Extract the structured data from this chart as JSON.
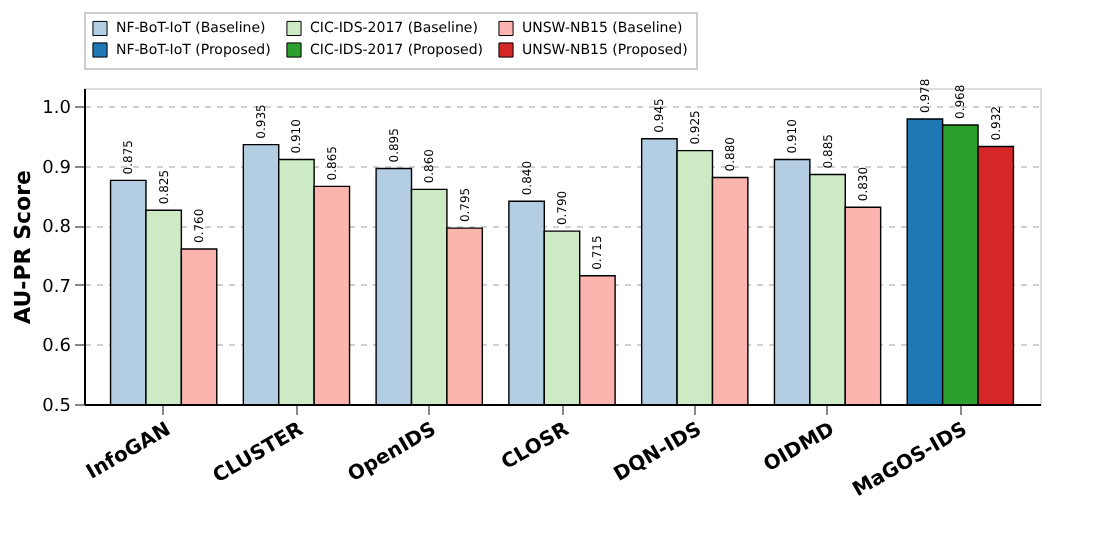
{
  "chart_data": {
    "type": "bar",
    "ylabel": "AU-PR Score",
    "categories": [
      "InfoGAN",
      "CLUSTER",
      "OpenIDS",
      "CLOSR",
      "DQN-IDS",
      "OIDMD",
      "MaGOS-IDS"
    ],
    "series": [
      {
        "name": "NF-BoT-IoT (Baseline)",
        "color": "#b3cde3",
        "values": [
          0.875,
          0.935,
          0.895,
          0.84,
          0.945,
          0.91,
          null
        ],
        "value_labels": [
          "0.875",
          "0.935",
          "0.895",
          "0.840",
          "0.945",
          "0.910",
          null
        ]
      },
      {
        "name": "CIC-IDS-2017 (Baseline)",
        "color": "#ccebc5",
        "values": [
          0.825,
          0.91,
          0.86,
          0.79,
          0.925,
          0.885,
          null
        ],
        "value_labels": [
          "0.825",
          "0.910",
          "0.860",
          "0.790",
          "0.925",
          "0.885",
          null
        ]
      },
      {
        "name": "UNSW-NB15 (Baseline)",
        "color": "#fbb4ae",
        "values": [
          0.76,
          0.865,
          0.795,
          0.715,
          0.88,
          0.83,
          null
        ],
        "value_labels": [
          "0.760",
          "0.865",
          "0.795",
          "0.715",
          "0.880",
          "0.830",
          null
        ]
      },
      {
        "name": "NF-BoT-IoT (Proposed)",
        "color": "#1f77b4",
        "values": [
          null,
          null,
          null,
          null,
          null,
          null,
          0.978
        ],
        "value_labels": [
          null,
          null,
          null,
          null,
          null,
          null,
          "0.978"
        ]
      },
      {
        "name": "CIC-IDS-2017 (Proposed)",
        "color": "#2ca02c",
        "values": [
          null,
          null,
          null,
          null,
          null,
          null,
          0.968
        ],
        "value_labels": [
          null,
          null,
          null,
          null,
          null,
          null,
          "0.968"
        ]
      },
      {
        "name": "UNSW-NB15 (Proposed)",
        "color": "#d62728",
        "values": [
          null,
          null,
          null,
          null,
          null,
          null,
          0.932
        ],
        "value_labels": [
          null,
          null,
          null,
          null,
          null,
          null,
          "0.932"
        ]
      }
    ],
    "ylim": [
      0.5,
      1.03
    ],
    "yticks": [
      0.5,
      0.6,
      0.7,
      0.8,
      0.9,
      {
        "value": 1.0,
        "label": "1.0"
      }
    ],
    "grid": "y",
    "legend": "top left"
  }
}
